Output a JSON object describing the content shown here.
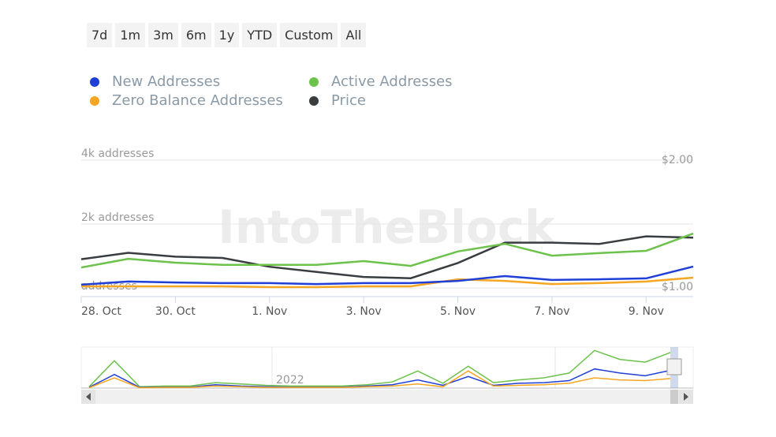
{
  "buttons": [
    "7d",
    "1m",
    "3m",
    "6m",
    "1y",
    "YTD",
    "Custom",
    "All"
  ],
  "watermark": "IntoTheBlock",
  "chart_data": {
    "type": "line",
    "categories": [
      "28. Oct",
      null,
      "30. Oct",
      null,
      "1. Nov",
      null,
      "3. Nov",
      null,
      "5. Nov",
      null,
      "7. Nov",
      null,
      "9. Nov",
      null
    ],
    "series": [
      {
        "name": "New Addresses",
        "color": "#1f3fd6",
        "values": [
          100,
          200,
          170,
          150,
          150,
          120,
          150,
          150,
          220,
          370,
          250,
          270,
          300,
          670
        ]
      },
      {
        "name": "Zero Balance Addresses",
        "color": "#f5a623",
        "values": [
          50,
          50,
          50,
          50,
          25,
          25,
          50,
          50,
          270,
          220,
          120,
          150,
          200,
          320
        ]
      },
      {
        "name": "Active Addresses",
        "color": "#6cc24a",
        "values": [
          640,
          910,
          790,
          720,
          720,
          720,
          840,
          690,
          1140,
          1380,
          1010,
          1090,
          1160,
          1700
        ]
      },
      {
        "name": "Price",
        "color": "#3a3d40",
        "axis": "y2",
        "values": [
          1.22,
          1.27,
          1.24,
          1.23,
          1.16,
          1.12,
          1.08,
          1.07,
          1.19,
          1.35,
          1.35,
          1.34,
          1.4,
          1.39
        ]
      }
    ],
    "ylim": [
      0,
      4000
    ],
    "yticks": [
      {
        "value": 0,
        "label": "addresses"
      },
      {
        "value": 2000,
        "label": "2k addresses"
      },
      {
        "value": 4000,
        "label": "4k addresses"
      }
    ],
    "y2lim": [
      1,
      2
    ],
    "y2ticks": [
      {
        "value": 1,
        "label": "$1.00"
      },
      {
        "value": 2,
        "label": "$2.00"
      }
    ],
    "grid": true,
    "navigator": {
      "labels": [
        "2022"
      ],
      "ylim": [
        0,
        6000
      ],
      "series": [
        {
          "name": "Active Addresses",
          "color": "#6cc24a",
          "values": [
            200,
            4000,
            200,
            300,
            300,
            800,
            600,
            400,
            300,
            300,
            300,
            500,
            900,
            2500,
            700,
            3200,
            800,
            1200,
            1500,
            2200,
            5500,
            4200,
            3800,
            5200
          ]
        },
        {
          "name": "New Addresses",
          "color": "#1f3fd6",
          "values": [
            100,
            2000,
            100,
            150,
            150,
            500,
            300,
            200,
            150,
            150,
            150,
            300,
            500,
            1200,
            400,
            1700,
            400,
            700,
            800,
            1100,
            2800,
            2200,
            1800,
            2600
          ]
        },
        {
          "name": "Zero Balance Addresses",
          "color": "#f5a623",
          "values": [
            50,
            1500,
            50,
            100,
            100,
            300,
            200,
            100,
            100,
            100,
            100,
            200,
            300,
            600,
            200,
            2500,
            300,
            400,
            500,
            700,
            1500,
            1200,
            1100,
            1400
          ]
        }
      ]
    }
  }
}
